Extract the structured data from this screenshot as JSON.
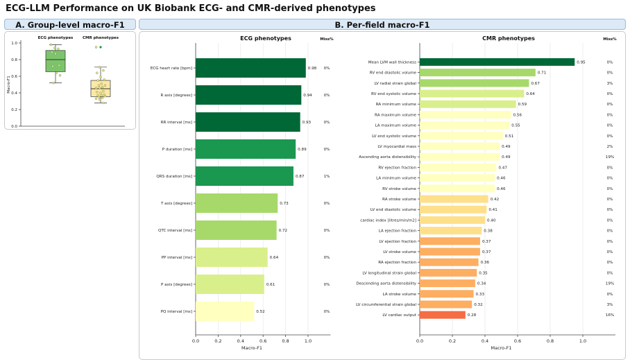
{
  "title": "ECG-LLM Performance on UK Biobank ECG- and CMR-derived phenotypes",
  "panel_a": {
    "header": "A. Group-level macro-F1"
  },
  "panel_b": {
    "header": "B. Per-field macro-F1"
  },
  "colors": {
    "header_bg": "#dce9f6",
    "ecg_box": "#7cc46c",
    "cmr_box": "#fce9a6",
    "scale": [
      "#006837",
      "#1a9850",
      "#66bd63",
      "#a6d96a",
      "#d9ef8b",
      "#ffffbf",
      "#fee08b",
      "#fdae61",
      "#f46d43"
    ]
  },
  "chart_data": [
    {
      "type": "box",
      "title": "",
      "ylabel": "Macro-F1",
      "ylim": [
        0,
        1
      ],
      "yticks": [
        "0.0",
        "0.2",
        "0.4",
        "0.6",
        "0.8",
        "1.0"
      ],
      "series": [
        {
          "name": "ECG phenotypes",
          "q1": 0.655,
          "median": 0.8,
          "q3": 0.91,
          "whisker_low": 0.52,
          "whisker_high": 0.98,
          "points": [
            0.98,
            0.94,
            0.93,
            0.89,
            0.87,
            0.73,
            0.72,
            0.64,
            0.61,
            0.52
          ]
        },
        {
          "name": "CMR phenotypes",
          "q1": 0.355,
          "median": 0.45,
          "q3": 0.55,
          "whisker_low": 0.28,
          "whisker_high": 0.71,
          "outliers": [
            0.95
          ],
          "points": [
            0.95,
            0.71,
            0.67,
            0.64,
            0.59,
            0.56,
            0.55,
            0.51,
            0.49,
            0.49,
            0.47,
            0.46,
            0.46,
            0.42,
            0.41,
            0.4,
            0.38,
            0.37,
            0.37,
            0.36,
            0.35,
            0.34,
            0.33,
            0.32,
            0.28
          ]
        }
      ]
    },
    {
      "type": "bar",
      "orientation": "horizontal",
      "title": "ECG phenotypes",
      "xlabel": "Macro-F1",
      "xlim": [
        0,
        1.2
      ],
      "xticks": [
        "0.0",
        "0.2",
        "0.4",
        "0.6",
        "0.8",
        "1.0"
      ],
      "miss_header": "Miss%",
      "grid": true,
      "categories": [
        "ECG heart rate [bpm]",
        "R axis [degrees]",
        "RR interval [ms]",
        "P duration [ms]",
        "QRS duration [ms]",
        "T axis [degrees]",
        "QTC interval [ms]",
        "PP interval [ms]",
        "P axis [degrees]",
        "PQ interval [ms]"
      ],
      "values": [
        0.98,
        0.94,
        0.93,
        0.89,
        0.87,
        0.73,
        0.72,
        0.64,
        0.61,
        0.52
      ],
      "value_labels": [
        "0.98",
        "0.94",
        "0.93",
        "0.89",
        "0.87",
        "0.73",
        "0.72",
        "0.64",
        "0.61",
        "0.52"
      ],
      "miss": [
        "0%",
        "0%",
        "0%",
        "0%",
        "1%",
        "0%",
        "0%",
        "0%",
        "0%",
        "0%"
      ]
    },
    {
      "type": "bar",
      "orientation": "horizontal",
      "title": "CMR phenotypes",
      "xlabel": "Macro-F1",
      "xlim": [
        0,
        1.2
      ],
      "xticks": [
        "0.0",
        "0.2",
        "0.4",
        "0.6",
        "0.8",
        "1.0"
      ],
      "miss_header": "Miss%",
      "grid": true,
      "categories": [
        "Mean LVM wall thickness",
        "RV end diastolic volume",
        "LV radial strain global",
        "RV end systolic volume",
        "RA minimum volume",
        "RA maximum volume",
        "LA maximum volume",
        "LV end systolic volume",
        "LV myocardial mass",
        "Ascending aorta distensibility",
        "RV ejection fraction",
        "LA minimum volume",
        "RV stroke volume",
        "RA stroke volume",
        "LV end diastolic volume",
        "cardiac index [litres/min/m2]",
        "LA ejection fraction",
        "LV ejection fraction",
        "LV stroke volume",
        "RA ejection fraction",
        "LV longitudinal strain global",
        "Descending aorta distensibility",
        "LA stroke volume",
        "LV circumferential strain global",
        "LV cardiac output"
      ],
      "values": [
        0.95,
        0.71,
        0.67,
        0.64,
        0.59,
        0.56,
        0.55,
        0.51,
        0.49,
        0.49,
        0.47,
        0.46,
        0.46,
        0.42,
        0.41,
        0.4,
        0.38,
        0.37,
        0.37,
        0.36,
        0.35,
        0.34,
        0.33,
        0.32,
        0.28
      ],
      "value_labels": [
        "0.95",
        "0.71",
        "0.67",
        "0.64",
        "0.59",
        "0.56",
        "0.55",
        "0.51",
        "0.49",
        "0.49",
        "0.47",
        "0.46",
        "0.46",
        "0.42",
        "0.41",
        "0.40",
        "0.38",
        "0.37",
        "0.37",
        "0.36",
        "0.35",
        "0.34",
        "0.33",
        "0.32",
        "0.28"
      ],
      "miss": [
        "0%",
        "0%",
        "3%",
        "0%",
        "0%",
        "0%",
        "0%",
        "0%",
        "2%",
        "19%",
        "0%",
        "0%",
        "0%",
        "0%",
        "0%",
        "0%",
        "0%",
        "0%",
        "0%",
        "0%",
        "0%",
        "19%",
        "0%",
        "3%",
        "16%"
      ]
    }
  ]
}
